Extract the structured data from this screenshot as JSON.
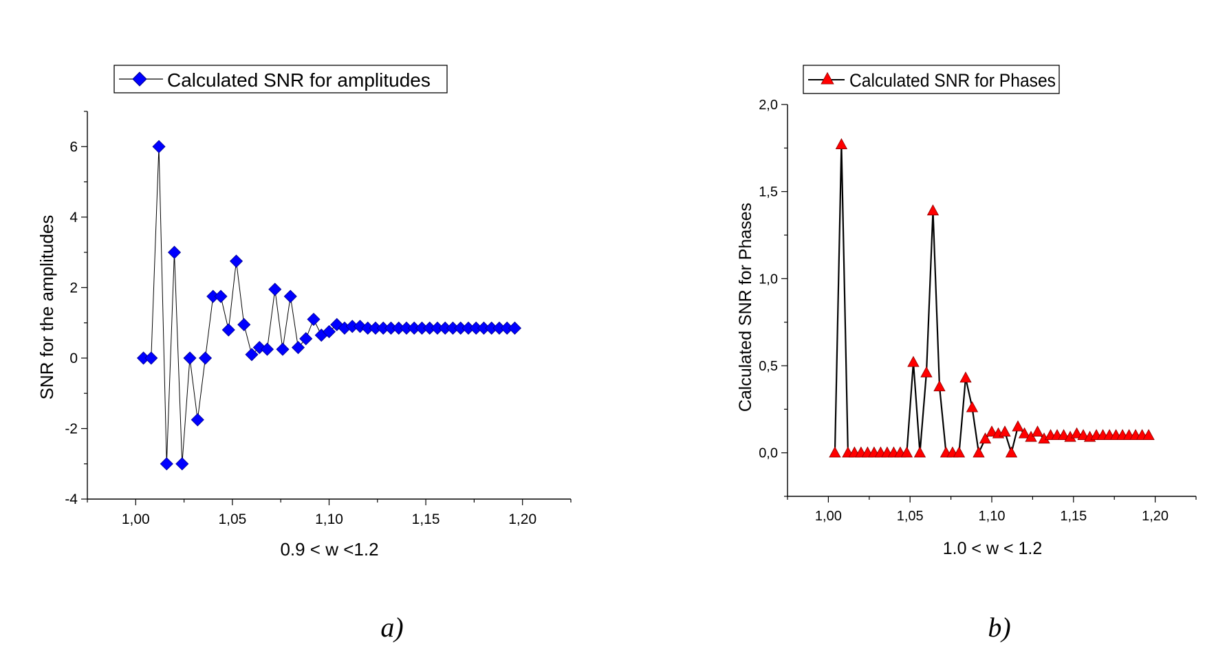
{
  "chart_data": [
    {
      "type": "line",
      "panel_label": "a)",
      "xlabel": "0.9 < w <1.2",
      "ylabel": "SNR for the amplitudes",
      "xlim": [
        0.975,
        1.225
      ],
      "ylim": [
        -4,
        7
      ],
      "x_ticks": [
        1.0,
        1.05,
        1.1,
        1.15,
        1.2
      ],
      "x_tick_labels": [
        "1,00",
        "1,05",
        "1,10",
        "1,15",
        "1,20"
      ],
      "y_ticks": [
        -4,
        -2,
        0,
        2,
        4,
        6
      ],
      "y_tick_labels": [
        "-4",
        "-2",
        "0",
        "2",
        "4",
        "6"
      ],
      "grid": false,
      "legend_position": "top-left",
      "series": [
        {
          "name": "Calculated SNR for amplitudes",
          "color": "#0000ff",
          "line_color": "#000000",
          "marker": "diamond",
          "x": [
            1.004,
            1.008,
            1.012,
            1.016,
            1.02,
            1.024,
            1.028,
            1.032,
            1.036,
            1.04,
            1.044,
            1.048,
            1.052,
            1.056,
            1.06,
            1.064,
            1.068,
            1.072,
            1.076,
            1.08,
            1.084,
            1.088,
            1.092,
            1.096,
            1.1,
            1.104,
            1.108,
            1.112,
            1.116,
            1.12,
            1.124,
            1.128,
            1.132,
            1.136,
            1.14,
            1.144,
            1.148,
            1.152,
            1.156,
            1.16,
            1.164,
            1.168,
            1.172,
            1.176,
            1.18,
            1.184,
            1.188,
            1.192,
            1.196
          ],
          "y": [
            0,
            0,
            6,
            -3,
            3,
            -3,
            0,
            -1.75,
            0,
            1.75,
            1.75,
            0.8,
            2.75,
            0.95,
            0.1,
            0.3,
            0.25,
            1.95,
            0.25,
            1.75,
            0.3,
            0.55,
            1.1,
            0.65,
            0.75,
            0.95,
            0.85,
            0.9,
            0.9,
            0.85,
            0.85,
            0.85,
            0.85,
            0.85,
            0.85,
            0.85,
            0.85,
            0.85,
            0.85,
            0.85,
            0.85,
            0.85,
            0.85,
            0.85,
            0.85,
            0.85,
            0.85,
            0.85,
            0.85
          ]
        }
      ]
    },
    {
      "type": "line",
      "panel_label": "b)",
      "xlabel": "1.0 < w < 1.2",
      "ylabel": "Calculated SNR for Phases",
      "xlim": [
        0.975,
        1.225
      ],
      "ylim": [
        -0.25,
        2.0
      ],
      "x_ticks": [
        1.0,
        1.05,
        1.1,
        1.15,
        1.2
      ],
      "x_tick_labels": [
        "1,00",
        "1,05",
        "1,10",
        "1,15",
        "1,20"
      ],
      "y_ticks": [
        0,
        0.5,
        1.0,
        1.5,
        2.0
      ],
      "y_tick_labels": [
        "0,0",
        "0,5",
        "1,0",
        "1,5",
        "2,0"
      ],
      "grid": false,
      "legend_position": "top-left",
      "series": [
        {
          "name": "Calculated SNR for Phases",
          "color": "#ff0000",
          "line_color": "#000000",
          "marker": "triangle",
          "x": [
            1.004,
            1.008,
            1.012,
            1.016,
            1.02,
            1.024,
            1.028,
            1.032,
            1.036,
            1.04,
            1.044,
            1.048,
            1.052,
            1.056,
            1.06,
            1.064,
            1.068,
            1.072,
            1.076,
            1.08,
            1.084,
            1.088,
            1.092,
            1.096,
            1.1,
            1.104,
            1.108,
            1.112,
            1.116,
            1.12,
            1.124,
            1.128,
            1.132,
            1.136,
            1.14,
            1.144,
            1.148,
            1.152,
            1.156,
            1.16,
            1.164,
            1.168,
            1.172,
            1.176,
            1.18,
            1.184,
            1.188,
            1.192,
            1.196
          ],
          "y": [
            0,
            1.77,
            0,
            0,
            0,
            0,
            0,
            0,
            0,
            0,
            0,
            0,
            0.52,
            0,
            0.46,
            1.39,
            0.38,
            0,
            0,
            0,
            0.43,
            0.26,
            0,
            0.08,
            0.12,
            0.11,
            0.12,
            0,
            0.15,
            0.11,
            0.09,
            0.12,
            0.08,
            0.1,
            0.1,
            0.1,
            0.09,
            0.11,
            0.1,
            0.09,
            0.1,
            0.1,
            0.1,
            0.1,
            0.1,
            0.1,
            0.1,
            0.1,
            0.1
          ]
        }
      ]
    }
  ]
}
